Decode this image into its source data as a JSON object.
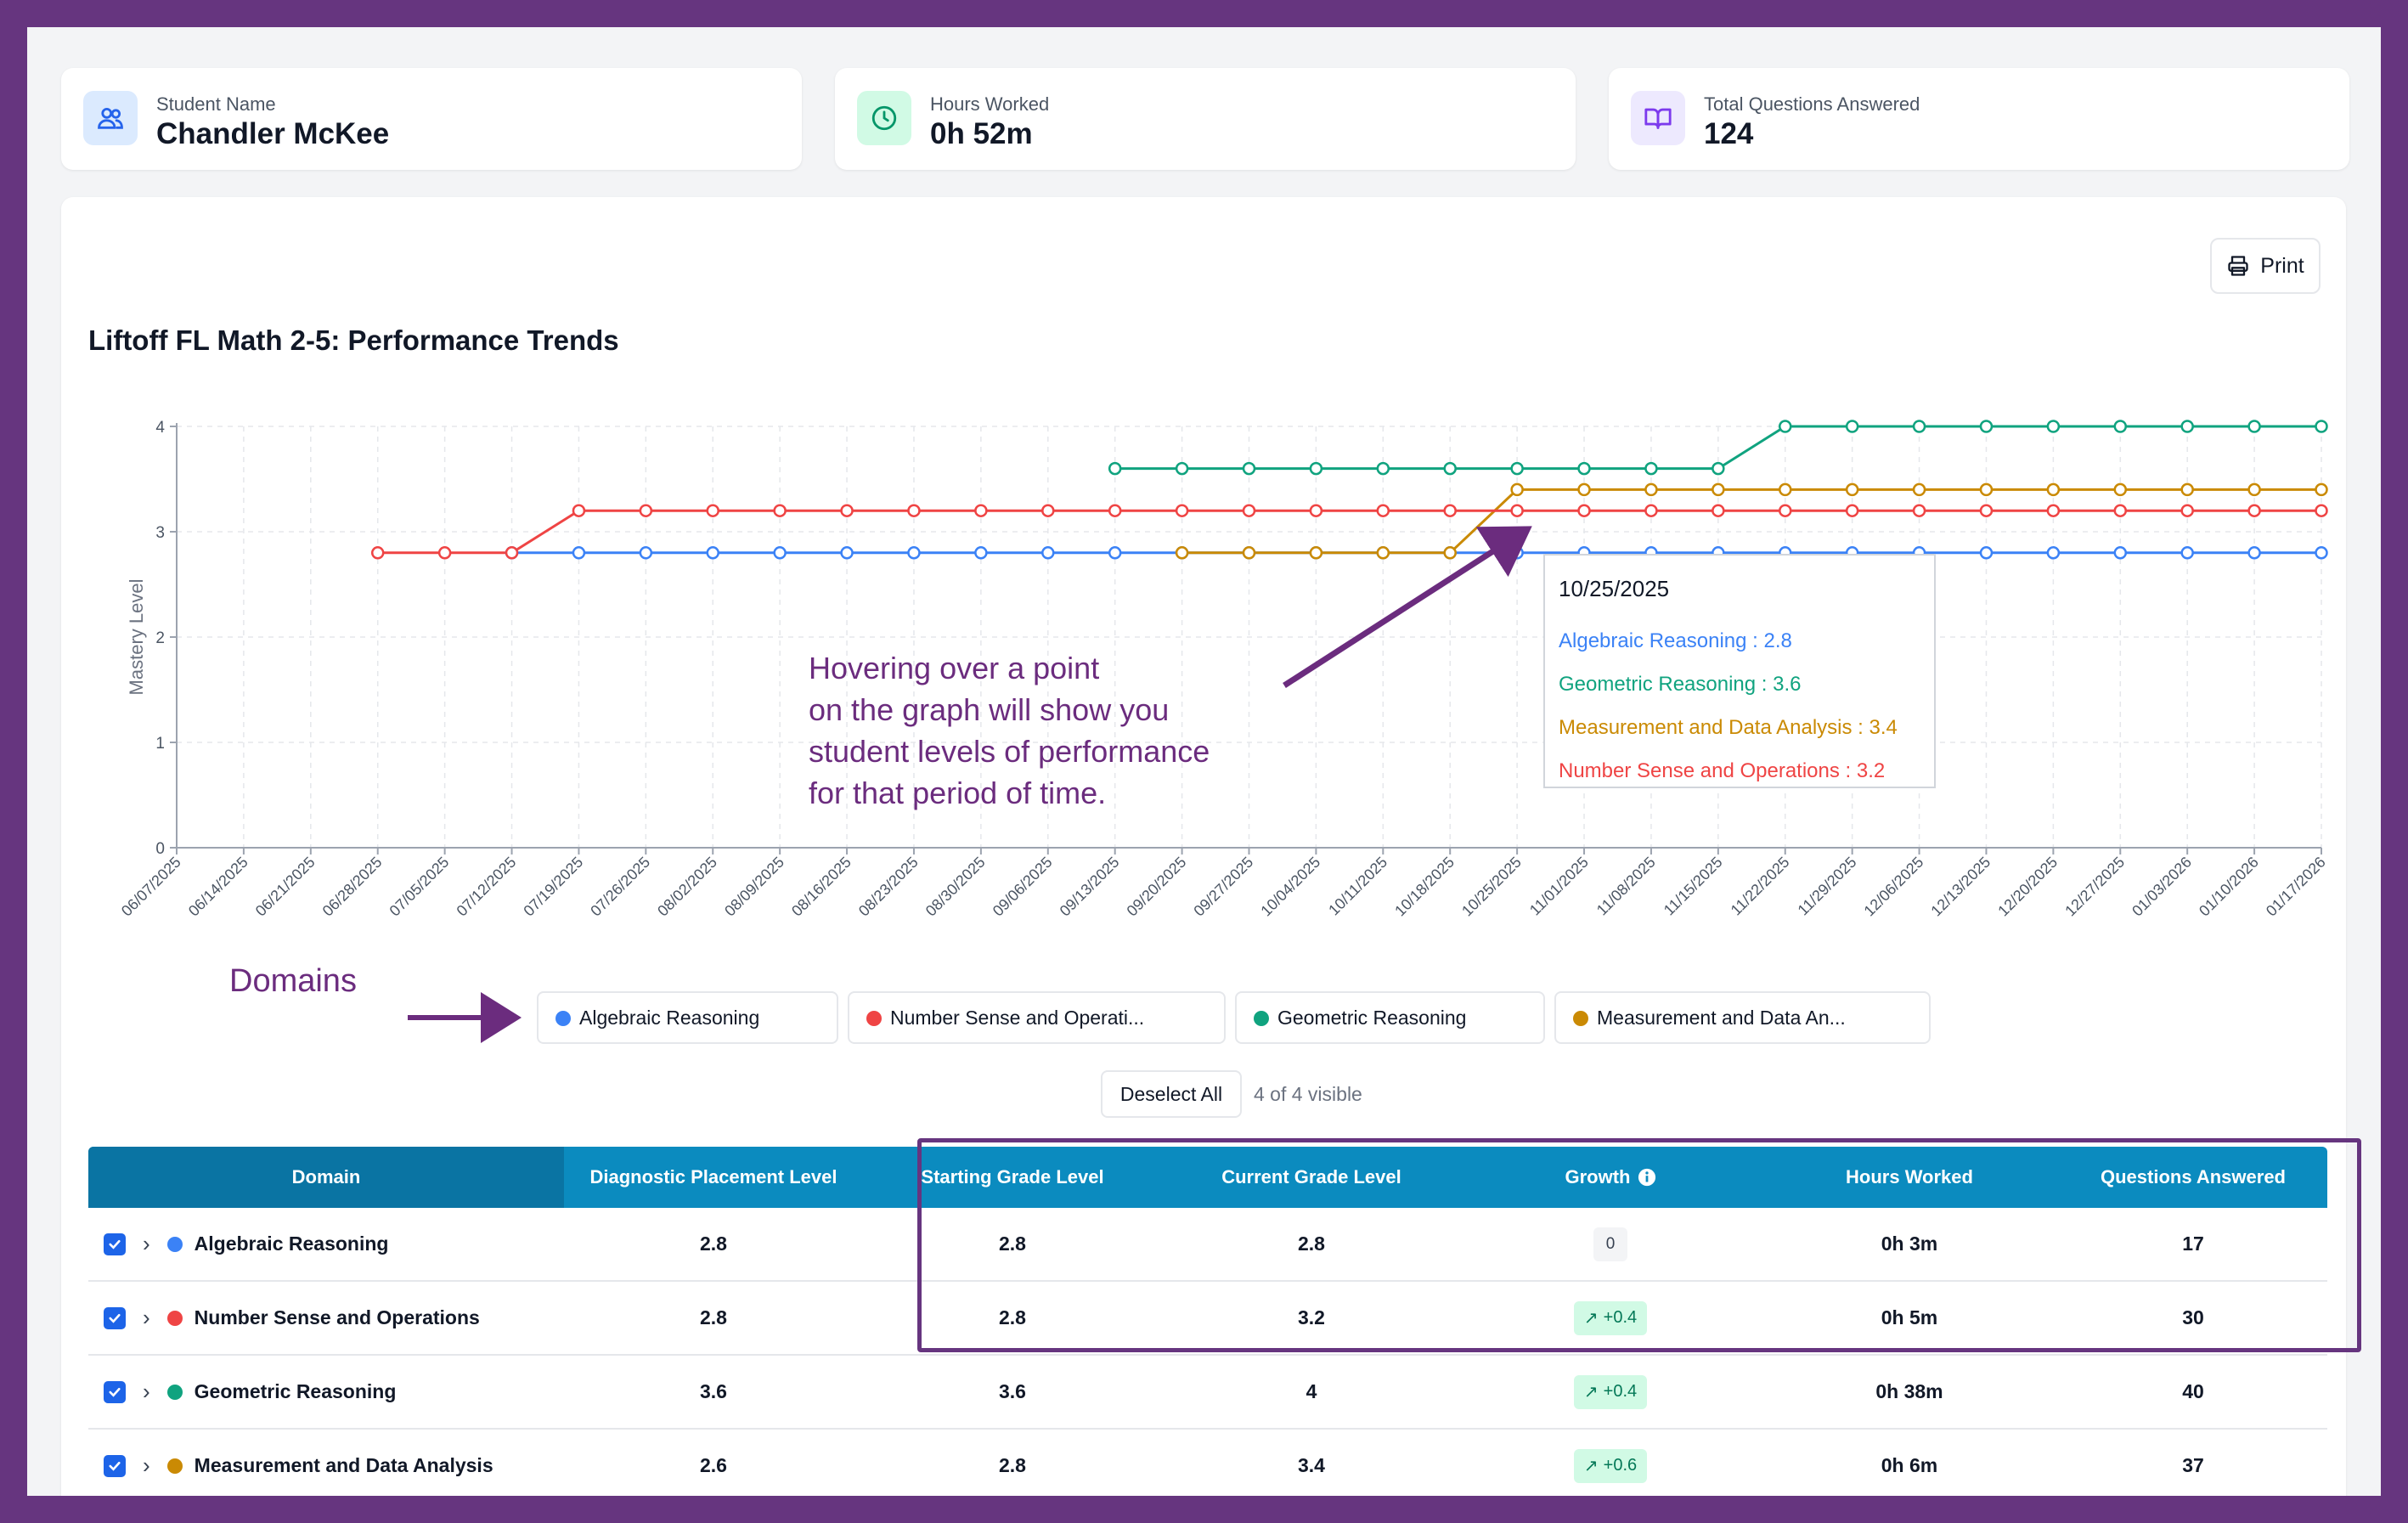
{
  "stats": {
    "student": {
      "label": "Student Name",
      "value": "Chandler McKee",
      "icon": "users-icon"
    },
    "hours": {
      "label": "Hours Worked",
      "value": "0h 52m",
      "icon": "clock-icon"
    },
    "questions": {
      "label": "Total Questions Answered",
      "value": "124",
      "icon": "book-icon"
    }
  },
  "print_label": "Print",
  "chart_title": "Liftoff FL Math 2-5: Performance Trends",
  "chart_data": {
    "type": "line",
    "title": "Liftoff FL Math 2-5: Performance Trends",
    "ylabel": "Mastery Level",
    "xlabel": "",
    "ylim": [
      0,
      4
    ],
    "yticks": [
      "0",
      "1",
      "2",
      "3",
      "4"
    ],
    "grid": true,
    "x": [
      "06/07/2025",
      "06/14/2025",
      "06/21/2025",
      "06/28/2025",
      "07/05/2025",
      "07/12/2025",
      "07/19/2025",
      "07/26/2025",
      "08/02/2025",
      "08/09/2025",
      "08/16/2025",
      "08/23/2025",
      "08/30/2025",
      "09/06/2025",
      "09/13/2025",
      "09/20/2025",
      "09/27/2025",
      "10/04/2025",
      "10/11/2025",
      "10/18/2025",
      "10/25/2025",
      "11/01/2025",
      "11/08/2025",
      "11/15/2025",
      "11/22/2025",
      "11/29/2025",
      "12/06/2025",
      "12/13/2025",
      "12/20/2025",
      "12/27/2025",
      "01/03/2026",
      "01/10/2026",
      "01/17/2026"
    ],
    "series": [
      {
        "name": "Algebraic Reasoning",
        "color": "#3b82f6",
        "values": [
          null,
          null,
          null,
          null,
          null,
          2.8,
          2.8,
          2.8,
          2.8,
          2.8,
          2.8,
          2.8,
          2.8,
          2.8,
          2.8,
          2.8,
          2.8,
          2.8,
          2.8,
          2.8,
          2.8,
          2.8,
          2.8,
          2.8,
          2.8,
          2.8,
          2.8,
          2.8,
          2.8,
          2.8,
          2.8,
          2.8,
          2.8
        ]
      },
      {
        "name": "Number Sense and Operations",
        "color": "#ef4444",
        "values": [
          null,
          null,
          null,
          2.8,
          2.8,
          2.8,
          3.2,
          3.2,
          3.2,
          3.2,
          3.2,
          3.2,
          3.2,
          3.2,
          3.2,
          3.2,
          3.2,
          3.2,
          3.2,
          3.2,
          3.2,
          3.2,
          3.2,
          3.2,
          3.2,
          3.2,
          3.2,
          3.2,
          3.2,
          3.2,
          3.2,
          3.2,
          3.2
        ]
      },
      {
        "name": "Geometric Reasoning",
        "color": "#10a37f",
        "values": [
          null,
          null,
          null,
          null,
          null,
          null,
          null,
          null,
          null,
          null,
          null,
          null,
          null,
          null,
          3.6,
          3.6,
          3.6,
          3.6,
          3.6,
          3.6,
          3.6,
          3.6,
          3.6,
          3.6,
          4,
          4,
          4,
          4,
          4,
          4,
          4,
          4,
          4
        ]
      },
      {
        "name": "Measurement and Data Analysis",
        "color": "#ca8a04",
        "values": [
          null,
          null,
          null,
          null,
          null,
          null,
          null,
          null,
          null,
          null,
          null,
          null,
          null,
          null,
          null,
          2.8,
          2.8,
          2.8,
          2.8,
          2.8,
          3.4,
          3.4,
          3.4,
          3.4,
          3.4,
          3.4,
          3.4,
          3.4,
          3.4,
          3.4,
          3.4,
          3.4,
          3.4
        ]
      }
    ]
  },
  "tooltip": {
    "date": "10/25/2025",
    "rows": [
      {
        "text": "Algebraic Reasoning : 2.8",
        "color": "#3b82f6"
      },
      {
        "text": "Geometric Reasoning : 3.6",
        "color": "#10a37f"
      },
      {
        "text": "Measurement and Data Analysis : 3.4",
        "color": "#ca8a04"
      },
      {
        "text": "Number Sense and Operations : 3.2",
        "color": "#ef4444"
      }
    ]
  },
  "annotation": "Hovering over a point\non the graph will show you\nstudent levels of performance\nfor that period of time.",
  "domains_label": "Domains",
  "legend": [
    {
      "label": "Algebraic Reasoning",
      "color": "#3b82f6"
    },
    {
      "label": "Number Sense and Operati...",
      "color": "#ef4444"
    },
    {
      "label": "Geometric Reasoning",
      "color": "#10a37f"
    },
    {
      "label": "Measurement and Data An...",
      "color": "#ca8a04"
    }
  ],
  "deselect_label": "Deselect All",
  "visible_count": "4 of 4 visible",
  "table": {
    "headers": [
      "Domain",
      "Diagnostic Placement Level",
      "Starting Grade Level",
      "Current Grade Level",
      "Growth",
      "Hours Worked",
      "Questions Answered"
    ],
    "rows": [
      {
        "domain": "Algebraic Reasoning",
        "color": "#3b82f6",
        "diagnostic": "2.8",
        "starting": "2.8",
        "current": "2.8",
        "growth": "0",
        "growth_up": false,
        "hours": "0h 3m",
        "questions": "17"
      },
      {
        "domain": "Number Sense and Operations",
        "color": "#ef4444",
        "diagnostic": "2.8",
        "starting": "2.8",
        "current": "3.2",
        "growth": "+0.4",
        "growth_up": true,
        "hours": "0h 5m",
        "questions": "30"
      },
      {
        "domain": "Geometric Reasoning",
        "color": "#10a37f",
        "diagnostic": "3.6",
        "starting": "3.6",
        "current": "4",
        "growth": "+0.4",
        "growth_up": true,
        "hours": "0h 38m",
        "questions": "40"
      },
      {
        "domain": "Measurement and Data Analysis",
        "color": "#ca8a04",
        "diagnostic": "2.6",
        "starting": "2.8",
        "current": "3.4",
        "growth": "+0.6",
        "growth_up": true,
        "hours": "0h 6m",
        "questions": "37"
      }
    ]
  }
}
